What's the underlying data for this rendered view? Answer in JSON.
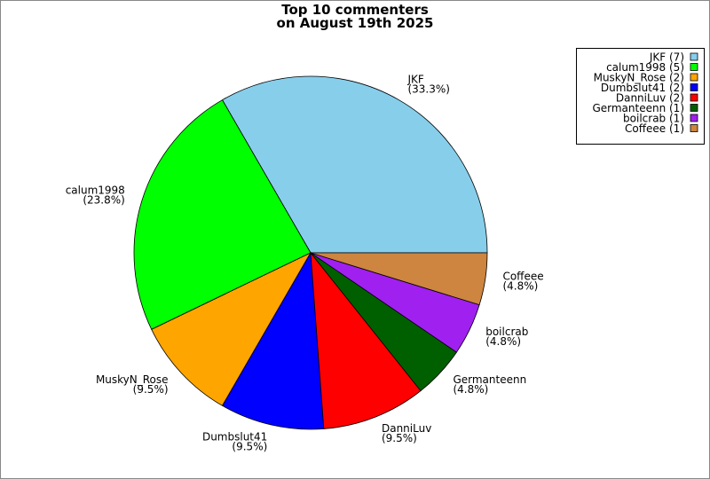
{
  "chart_data": {
    "type": "pie",
    "title": [
      "Top 10 commenters",
      "on August 19th 2025"
    ],
    "categories": [
      "JKF",
      "calum1998",
      "MuskyN_Rose",
      "Dumbslut41",
      "DanniLuv",
      "Germanteenn",
      "boilcrab",
      "Coffeee"
    ],
    "values": [
      7,
      5,
      2,
      2,
      2,
      1,
      1,
      1
    ],
    "value_labels": [
      "(33.3%)",
      "(23.8%)",
      "(9.5%)",
      "(9.5%)",
      "(9.5%)",
      "(4.8%)",
      "(4.8%)",
      "(4.8%)"
    ],
    "legend_labels": [
      "JKF (7)",
      "calum1998 (5)",
      "MuskyN_Rose (2)",
      "Dumbslut41 (2)",
      "DanniLuv (2)",
      "Germanteenn (1)",
      "boilcrab (1)",
      "Coffeee (1)"
    ],
    "colors": [
      "#87ceeb",
      "#00ff00",
      "#ffa500",
      "#0000ff",
      "#ff0000",
      "#006000",
      "#a020f0",
      "#cd853f"
    ],
    "legend": "upper right"
  }
}
